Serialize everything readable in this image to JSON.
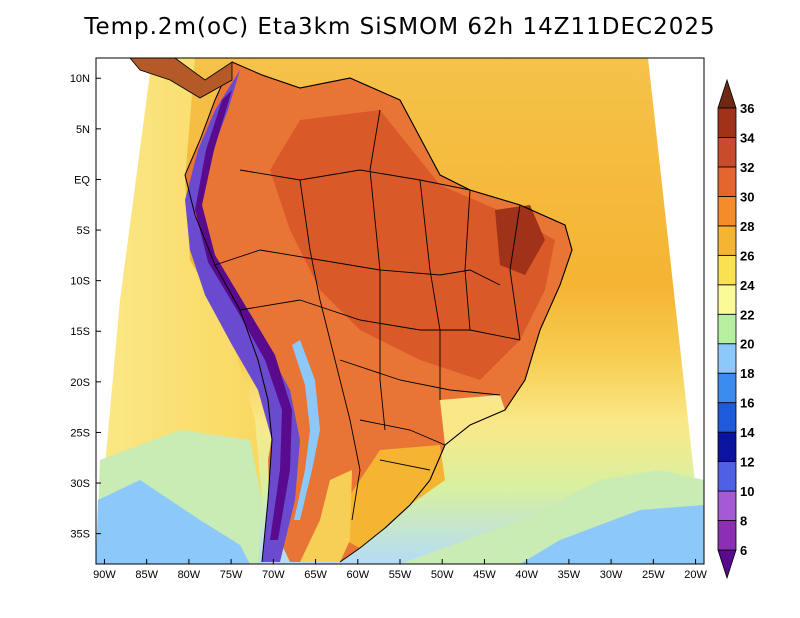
{
  "title": "Temp.2m(oC) Eta3km SiSMOM 62h 14Z11DEC2025",
  "map": {
    "lon_min": -91,
    "lon_max": -19,
    "lat_min": -38,
    "lat_max": 12,
    "lon_ticks": [
      {
        "value": -90,
        "label": "90W"
      },
      {
        "value": -85,
        "label": "85W"
      },
      {
        "value": -80,
        "label": "80W"
      },
      {
        "value": -75,
        "label": "75W"
      },
      {
        "value": -70,
        "label": "70W"
      },
      {
        "value": -65,
        "label": "65W"
      },
      {
        "value": -60,
        "label": "60W"
      },
      {
        "value": -55,
        "label": "55W"
      },
      {
        "value": -50,
        "label": "50W"
      },
      {
        "value": -45,
        "label": "45W"
      },
      {
        "value": -40,
        "label": "40W"
      },
      {
        "value": -35,
        "label": "35W"
      },
      {
        "value": -30,
        "label": "30W"
      },
      {
        "value": -25,
        "label": "25W"
      },
      {
        "value": -20,
        "label": "20W"
      }
    ],
    "lat_ticks": [
      {
        "value": 10,
        "label": "10N"
      },
      {
        "value": 5,
        "label": "5N"
      },
      {
        "value": 0,
        "label": "EQ"
      },
      {
        "value": -5,
        "label": "5S"
      },
      {
        "value": -10,
        "label": "10S"
      },
      {
        "value": -15,
        "label": "15S"
      },
      {
        "value": -20,
        "label": "20S"
      },
      {
        "value": -25,
        "label": "25S"
      },
      {
        "value": -30,
        "label": "30S"
      },
      {
        "value": -35,
        "label": "35S"
      }
    ]
  },
  "colorbar": {
    "levels": [
      "6",
      "8",
      "10",
      "12",
      "14",
      "16",
      "18",
      "20",
      "22",
      "24",
      "26",
      "28",
      "30",
      "32",
      "34",
      "36"
    ],
    "colors": [
      "#5a0a8c",
      "#8b2fb5",
      "#a35ad2",
      "#5060e6",
      "#0a14a0",
      "#1e5adc",
      "#3c8cf0",
      "#8cc8fa",
      "#b4f0a0",
      "#fafa96",
      "#fae150",
      "#f5b432",
      "#f58c28",
      "#e6642d",
      "#c84b2d",
      "#a03219",
      "#6e2814"
    ]
  }
}
